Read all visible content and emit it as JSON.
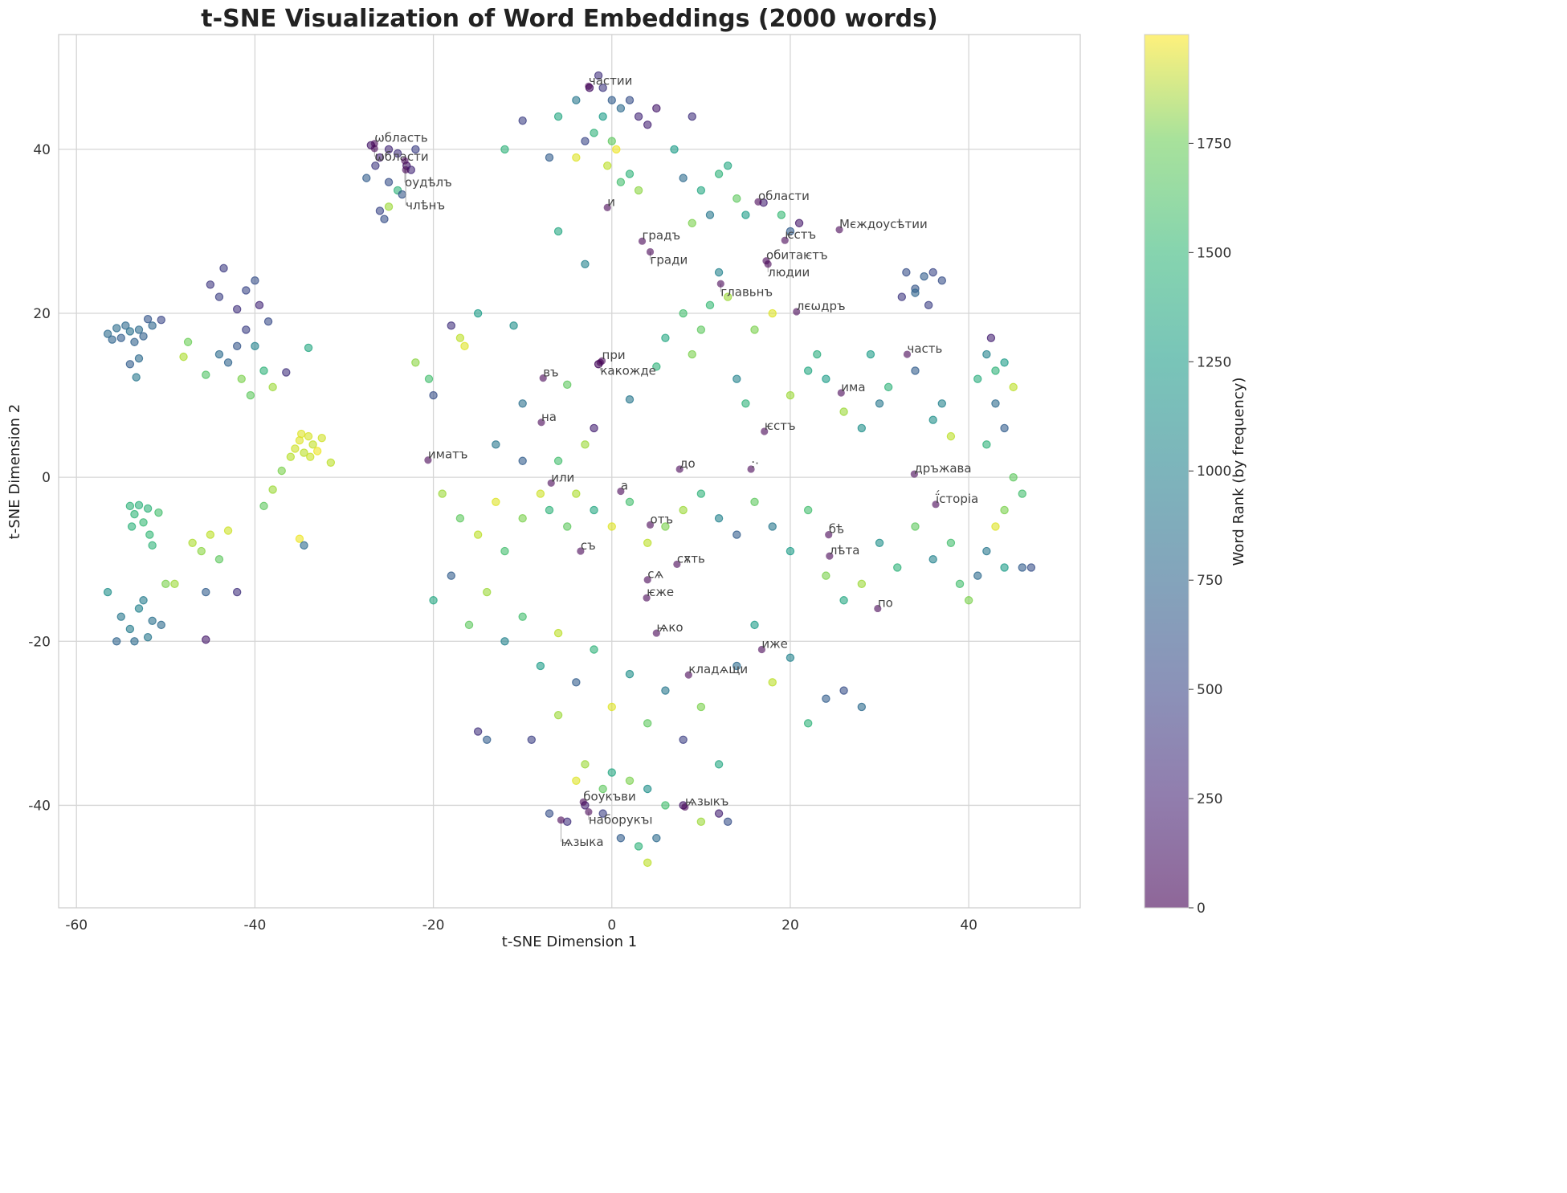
{
  "chart_data": {
    "type": "scatter",
    "title": "t-SNE Visualization of Word Embeddings (2000 words)",
    "xlabel": "t-SNE Dimension 1",
    "ylabel": "t-SNE Dimension 2",
    "xlim": [
      -62,
      52.5
    ],
    "ylim": [
      -52.5,
      54
    ],
    "xticks": [
      -60,
      -40,
      -20,
      0,
      20,
      40
    ],
    "yticks": [
      -40,
      -20,
      0,
      20,
      40
    ],
    "grid": true,
    "colormap": "viridis",
    "point_alpha": 0.6,
    "colorbar": {
      "label": "Word Rank (by frequency)",
      "range": [
        0,
        1999
      ],
      "ticks": [
        0,
        250,
        500,
        750,
        1000,
        1250,
        1500,
        1750
      ]
    },
    "annotations": [
      {
        "text": "ωбласть",
        "x": -26.6,
        "y": 40.7
      },
      {
        "text": "ωбласти",
        "x": -26.6,
        "y": 40.1
      },
      {
        "text": "оудѣлъ",
        "x": -23.2,
        "y": 38.6
      },
      {
        "text": "члѣнъ",
        "x": -23.1,
        "y": 37.5
      },
      {
        "text": "частии",
        "x": -2.6,
        "y": 47.7
      },
      {
        "text": "и",
        "x": -0.5,
        "y": 32.9
      },
      {
        "text": "области",
        "x": 16.4,
        "y": 33.6
      },
      {
        "text": "градъ",
        "x": 3.4,
        "y": 28.8
      },
      {
        "text": "гради",
        "x": 4.3,
        "y": 27.5
      },
      {
        "text": "ѥстъ",
        "x": 19.4,
        "y": 28.9
      },
      {
        "text": "Мєждоусѣтии",
        "x": 25.5,
        "y": 30.2
      },
      {
        "text": "обитаѥтъ",
        "x": 17.3,
        "y": 26.4
      },
      {
        "text": "людии",
        "x": 17.5,
        "y": 26.0
      },
      {
        "text": "главьнъ",
        "x": 12.2,
        "y": 23.6
      },
      {
        "text": "лєωдръ",
        "x": 20.7,
        "y": 20.2
      },
      {
        "text": "часть",
        "x": 33.1,
        "y": 15.0
      },
      {
        "text": "при",
        "x": -1.1,
        "y": 14.2
      },
      {
        "text": "какожде",
        "x": -1.3,
        "y": 14.0
      },
      {
        "text": "въ",
        "x": -7.7,
        "y": 12.1
      },
      {
        "text": "има",
        "x": 25.7,
        "y": 10.3
      },
      {
        "text": "на",
        "x": -7.9,
        "y": 6.7
      },
      {
        "text": "ѥстъ",
        "x": 17.1,
        "y": 5.6
      },
      {
        "text": "иматъ",
        "x": -20.6,
        "y": 2.1
      },
      {
        "text": "до",
        "x": 7.6,
        "y": 1.0
      },
      {
        "text": ":·",
        "x": 15.6,
        "y": 1.0
      },
      {
        "text": "дръжава",
        "x": 33.9,
        "y": 0.4
      },
      {
        "text": "или",
        "x": -6.8,
        "y": -0.7
      },
      {
        "text": "а",
        "x": 1.0,
        "y": -1.7
      },
      {
        "text": "ї́сторіа",
        "x": 36.3,
        "y": -3.3
      },
      {
        "text": "отъ",
        "x": 4.3,
        "y": -5.8
      },
      {
        "text": "бѣ",
        "x": 24.3,
        "y": -7.0
      },
      {
        "text": "лѣта",
        "x": 24.4,
        "y": -9.6
      },
      {
        "text": "съ",
        "x": -3.5,
        "y": -9.0
      },
      {
        "text": "сѫть",
        "x": 7.3,
        "y": -10.6
      },
      {
        "text": "сѧ",
        "x": 4.0,
        "y": -12.5
      },
      {
        "text": "ѥже",
        "x": 3.9,
        "y": -14.7
      },
      {
        "text": "по",
        "x": 29.8,
        "y": -16.0
      },
      {
        "text": "ѩко",
        "x": 5.0,
        "y": -19.0
      },
      {
        "text": "иже",
        "x": 16.8,
        "y": -21.0
      },
      {
        "text": "кладѧщи",
        "x": 8.6,
        "y": -24.1
      },
      {
        "text": "боукъви",
        "x": -3.2,
        "y": -39.6
      },
      {
        "text": "наборукъı",
        "x": -2.6,
        "y": -40.8
      },
      {
        "text": "ѩзыкъ",
        "x": 8.2,
        "y": -40.2
      },
      {
        "text": "ѩзыка",
        "x": -5.7,
        "y": -41.8
      }
    ],
    "points": [
      [
        -56.5,
        17.5,
        700
      ],
      [
        -56,
        16.8,
        650
      ],
      [
        -55.5,
        18.2,
        720
      ],
      [
        -55,
        17,
        600
      ],
      [
        -54.5,
        18.5,
        680
      ],
      [
        -54,
        17.8,
        750
      ],
      [
        -53.5,
        16.5,
        640
      ],
      [
        -53,
        18,
        700
      ],
      [
        -52.5,
        17.2,
        620
      ],
      [
        -52,
        19.3,
        560
      ],
      [
        -51.5,
        18.5,
        660
      ],
      [
        -50.5,
        19.2,
        450
      ],
      [
        -53,
        14.5,
        700
      ],
      [
        -54,
        13.8,
        600
      ],
      [
        -53.3,
        12.2,
        800
      ],
      [
        -45,
        23.5,
        350
      ],
      [
        -44,
        22,
        400
      ],
      [
        -43.5,
        25.5,
        380
      ],
      [
        -42,
        20.5,
        300
      ],
      [
        -41,
        22.8,
        450
      ],
      [
        -40,
        24,
        500
      ],
      [
        -39.5,
        21,
        250
      ],
      [
        -38.5,
        19,
        480
      ],
      [
        -44,
        15,
        700
      ],
      [
        -43,
        14,
        650
      ],
      [
        -42,
        16,
        550
      ],
      [
        -41,
        18,
        400
      ],
      [
        -40,
        16,
        900
      ],
      [
        -39,
        13,
        1300
      ],
      [
        -38,
        11,
        1700
      ],
      [
        -40.5,
        10,
        1500
      ],
      [
        -41.5,
        12,
        1600
      ],
      [
        -45.5,
        12.5,
        1450
      ],
      [
        -47.5,
        16.5,
        1550
      ],
      [
        -48,
        14.7,
        1750
      ],
      [
        -36.5,
        12.8,
        300
      ],
      [
        -34,
        15.8,
        1200
      ],
      [
        -35.5,
        3.5,
        1850
      ],
      [
        -35,
        4.5,
        1900
      ],
      [
        -34.5,
        3,
        1800
      ],
      [
        -34,
        5,
        1880
      ],
      [
        -33.5,
        4,
        1820
      ],
      [
        -33,
        3.2,
        1950
      ],
      [
        -32.5,
        4.8,
        1860
      ],
      [
        -36,
        2.5,
        1780
      ],
      [
        -34.8,
        5.3,
        1900
      ],
      [
        -33.8,
        2.5,
        1840
      ],
      [
        -31.5,
        1.8,
        1800
      ],
      [
        -35,
        -7.5,
        1950
      ],
      [
        -34.5,
        -8.3,
        700
      ],
      [
        -37,
        0.8,
        1600
      ],
      [
        -38,
        -1.5,
        1700
      ],
      [
        -39,
        -3.5,
        1500
      ],
      [
        -54,
        -3.5,
        1300
      ],
      [
        -53.5,
        -4.5,
        1320
      ],
      [
        -53,
        -3.4,
        1280
      ],
      [
        -52.5,
        -5.5,
        1350
      ],
      [
        -52,
        -3.8,
        1300
      ],
      [
        -51.8,
        -7,
        1340
      ],
      [
        -51.5,
        -8.3,
        1310
      ],
      [
        -53.8,
        -6,
        1290
      ],
      [
        -50.8,
        -4.3,
        1400
      ],
      [
        -56.5,
        -14,
        1000
      ],
      [
        -55,
        -17,
        800
      ],
      [
        -54,
        -18.5,
        850
      ],
      [
        -53.5,
        -20,
        700
      ],
      [
        -53,
        -16,
        900
      ],
      [
        -52,
        -19.5,
        800
      ],
      [
        -51.5,
        -17.5,
        750
      ],
      [
        -50.5,
        -18,
        700
      ],
      [
        -55.5,
        -20,
        650
      ],
      [
        -52.5,
        -15,
        850
      ],
      [
        -50,
        -13,
        1600
      ],
      [
        -49,
        -13,
        1700
      ],
      [
        -45.5,
        -19.8,
        150
      ],
      [
        -45.5,
        -14,
        600
      ],
      [
        -42,
        -14,
        300
      ],
      [
        -47,
        -8,
        1750
      ],
      [
        -45,
        -7,
        1800
      ],
      [
        -43,
        -6.5,
        1850
      ],
      [
        -44,
        -10,
        1500
      ],
      [
        -46,
        -9,
        1650
      ],
      [
        -27,
        40.5,
        150
      ],
      [
        -26,
        39,
        200
      ],
      [
        -25,
        40,
        250
      ],
      [
        -24,
        39.5,
        300
      ],
      [
        -23,
        38,
        120
      ],
      [
        -22,
        40,
        400
      ],
      [
        -26.5,
        38,
        350
      ],
      [
        -27.5,
        36.5,
        600
      ],
      [
        -25,
        36,
        500
      ],
      [
        -24,
        35,
        1300
      ],
      [
        -26,
        32.5,
        450
      ],
      [
        -25.5,
        31.5,
        500
      ],
      [
        -25,
        33,
        1700
      ],
      [
        -22.5,
        37.5,
        250
      ],
      [
        -23.5,
        34.5,
        550
      ],
      [
        -1.5,
        49,
        300
      ],
      [
        -1,
        47.5,
        350
      ],
      [
        -2.5,
        47.5,
        100
      ],
      [
        0,
        46,
        600
      ],
      [
        1,
        45,
        700
      ],
      [
        2,
        46,
        500
      ],
      [
        3,
        44,
        250
      ],
      [
        4,
        43,
        200
      ],
      [
        5,
        45,
        150
      ],
      [
        -1,
        44,
        1100
      ],
      [
        -2,
        42,
        1300
      ],
      [
        0,
        41,
        1500
      ],
      [
        -0.5,
        38,
        1800
      ],
      [
        0.5,
        40,
        1950
      ],
      [
        1,
        36,
        1400
      ],
      [
        2,
        37,
        1300
      ],
      [
        3,
        35,
        1650
      ],
      [
        -3,
        41,
        450
      ],
      [
        -4,
        39,
        1900
      ],
      [
        -10,
        43.5,
        400
      ],
      [
        -12,
        40,
        1300
      ],
      [
        -7,
        39,
        600
      ],
      [
        7,
        40,
        1100
      ],
      [
        9,
        44,
        300
      ],
      [
        -6,
        44,
        1200
      ],
      [
        -4,
        46,
        800
      ],
      [
        8,
        36.5,
        700
      ],
      [
        10,
        35,
        1200
      ],
      [
        12,
        37,
        1300
      ],
      [
        13,
        38,
        1200
      ],
      [
        14,
        34,
        1500
      ],
      [
        11,
        32,
        800
      ],
      [
        9,
        31,
        1600
      ],
      [
        15,
        32,
        1100
      ],
      [
        17,
        33.5,
        200
      ],
      [
        19,
        32,
        1350
      ],
      [
        20,
        30,
        600
      ],
      [
        21,
        31,
        150
      ],
      [
        -6,
        30,
        1200
      ],
      [
        -3,
        26,
        900
      ],
      [
        33,
        25,
        500
      ],
      [
        34,
        23,
        550
      ],
      [
        35,
        24.5,
        600
      ],
      [
        36,
        25,
        450
      ],
      [
        37,
        24,
        500
      ],
      [
        35.5,
        21,
        400
      ],
      [
        34,
        22.5,
        650
      ],
      [
        32.5,
        22,
        350
      ],
      [
        42,
        15,
        900
      ],
      [
        43,
        13,
        1300
      ],
      [
        44,
        14,
        1100
      ],
      [
        45,
        11,
        1800
      ],
      [
        42.5,
        17,
        200
      ],
      [
        41,
        12,
        1250
      ],
      [
        43,
        9,
        700
      ],
      [
        44,
        6,
        600
      ],
      [
        42,
        4,
        1300
      ],
      [
        45,
        0,
        1500
      ],
      [
        46,
        -2,
        1400
      ],
      [
        44,
        -4,
        1600
      ],
      [
        43,
        -6,
        1900
      ],
      [
        42,
        -9,
        800
      ],
      [
        44,
        -11,
        1100
      ],
      [
        46,
        -11,
        600
      ],
      [
        47,
        -11,
        500
      ],
      [
        41,
        -12,
        700
      ],
      [
        39,
        -13,
        1400
      ],
      [
        40,
        -15,
        1600
      ],
      [
        -18,
        18.5,
        300
      ],
      [
        -17,
        17,
        1800
      ],
      [
        -16.5,
        16,
        1900
      ],
      [
        -15,
        20,
        1100
      ],
      [
        -22,
        14,
        1650
      ],
      [
        -20.5,
        12,
        1400
      ],
      [
        -20,
        10,
        500
      ],
      [
        -11,
        18.5,
        1000
      ],
      [
        -10,
        9,
        750
      ],
      [
        -5,
        11.3,
        1500
      ],
      [
        -13,
        4,
        800
      ],
      [
        -10,
        2,
        600
      ],
      [
        -6,
        2,
        1400
      ],
      [
        -3,
        4,
        1700
      ],
      [
        -2,
        6,
        200
      ],
      [
        -1.5,
        13.8,
        50
      ],
      [
        2,
        9.5,
        800
      ],
      [
        5,
        13.5,
        1300
      ],
      [
        6,
        17,
        1200
      ],
      [
        8,
        20,
        1400
      ],
      [
        9,
        15,
        1600
      ],
      [
        10,
        18,
        1500
      ],
      [
        11,
        21,
        1350
      ],
      [
        12,
        25,
        900
      ],
      [
        13,
        22,
        1700
      ],
      [
        14,
        12,
        900
      ],
      [
        15,
        9,
        1300
      ],
      [
        16,
        18,
        1600
      ],
      [
        18,
        20,
        1900
      ],
      [
        20,
        10,
        1700
      ],
      [
        22,
        13,
        1200
      ],
      [
        23,
        15,
        1250
      ],
      [
        24,
        12,
        1100
      ],
      [
        26,
        8,
        1700
      ],
      [
        28,
        6,
        1000
      ],
      [
        30,
        9,
        800
      ],
      [
        31,
        11,
        1300
      ],
      [
        34,
        13,
        600
      ],
      [
        36,
        7,
        1000
      ],
      [
        38,
        5,
        1800
      ],
      [
        37,
        9,
        900
      ],
      [
        29,
        15,
        1100
      ],
      [
        -19,
        -2,
        1700
      ],
      [
        -17,
        -5,
        1500
      ],
      [
        -15,
        -7,
        1800
      ],
      [
        -13,
        -3,
        1900
      ],
      [
        -12,
        -9,
        1400
      ],
      [
        -10,
        -5,
        1600
      ],
      [
        -8,
        -2,
        1850
      ],
      [
        -7,
        -4,
        1300
      ],
      [
        -5,
        -6,
        1500
      ],
      [
        -4,
        -2,
        1750
      ],
      [
        -2,
        -4,
        1200
      ],
      [
        0,
        -6,
        1900
      ],
      [
        2,
        -3,
        1400
      ],
      [
        4,
        -8,
        1800
      ],
      [
        6,
        -6,
        1600
      ],
      [
        8,
        -4,
        1700
      ],
      [
        10,
        -2,
        1300
      ],
      [
        12,
        -5,
        900
      ],
      [
        14,
        -7,
        600
      ],
      [
        16,
        -3,
        1500
      ],
      [
        18,
        -6,
        800
      ],
      [
        20,
        -9,
        1100
      ],
      [
        22,
        -4,
        1400
      ],
      [
        24,
        -12,
        1600
      ],
      [
        26,
        -15,
        1200
      ],
      [
        28,
        -13,
        1700
      ],
      [
        30,
        -8,
        1000
      ],
      [
        32,
        -11,
        1300
      ],
      [
        34,
        -6,
        1500
      ],
      [
        36,
        -10,
        900
      ],
      [
        38,
        -8,
        1400
      ],
      [
        -20,
        -15,
        1200
      ],
      [
        -18,
        -12,
        600
      ],
      [
        -16,
        -18,
        1500
      ],
      [
        -14,
        -14,
        1700
      ],
      [
        -12,
        -20,
        900
      ],
      [
        -10,
        -17,
        1400
      ],
      [
        -8,
        -23,
        1100
      ],
      [
        -6,
        -19,
        1800
      ],
      [
        -4,
        -25,
        600
      ],
      [
        -2,
        -21,
        1300
      ],
      [
        0,
        -28,
        1900
      ],
      [
        2,
        -24,
        1000
      ],
      [
        4,
        -30,
        1500
      ],
      [
        6,
        -26,
        800
      ],
      [
        8,
        -32,
        400
      ],
      [
        10,
        -28,
        1600
      ],
      [
        12,
        -35,
        1200
      ],
      [
        14,
        -23,
        700
      ],
      [
        16,
        -18,
        1100
      ],
      [
        18,
        -25,
        1800
      ],
      [
        20,
        -22,
        900
      ],
      [
        22,
        -30,
        1300
      ],
      [
        24,
        -27,
        600
      ],
      [
        26,
        -26,
        500
      ],
      [
        28,
        -28,
        700
      ],
      [
        -15,
        -31,
        300
      ],
      [
        -14,
        -32,
        600
      ],
      [
        -9,
        -32,
        400
      ],
      [
        -6,
        -29,
        1700
      ],
      [
        -4,
        -37,
        1900
      ],
      [
        -3,
        -35,
        1700
      ],
      [
        -1,
        -38,
        1500
      ],
      [
        0,
        -36,
        1200
      ],
      [
        2,
        -37,
        1600
      ],
      [
        4,
        -38,
        1000
      ],
      [
        -7,
        -41,
        500
      ],
      [
        -5,
        -42,
        300
      ],
      [
        -3,
        -40,
        200
      ],
      [
        -1,
        -41,
        400
      ],
      [
        1,
        -44,
        600
      ],
      [
        3,
        -45,
        1300
      ],
      [
        4,
        -47,
        1800
      ],
      [
        5,
        -44,
        700
      ],
      [
        6,
        -40,
        1400
      ],
      [
        8,
        -40,
        150
      ],
      [
        10,
        -42,
        1700
      ],
      [
        12,
        -41,
        200
      ],
      [
        13,
        -42,
        500
      ]
    ]
  }
}
